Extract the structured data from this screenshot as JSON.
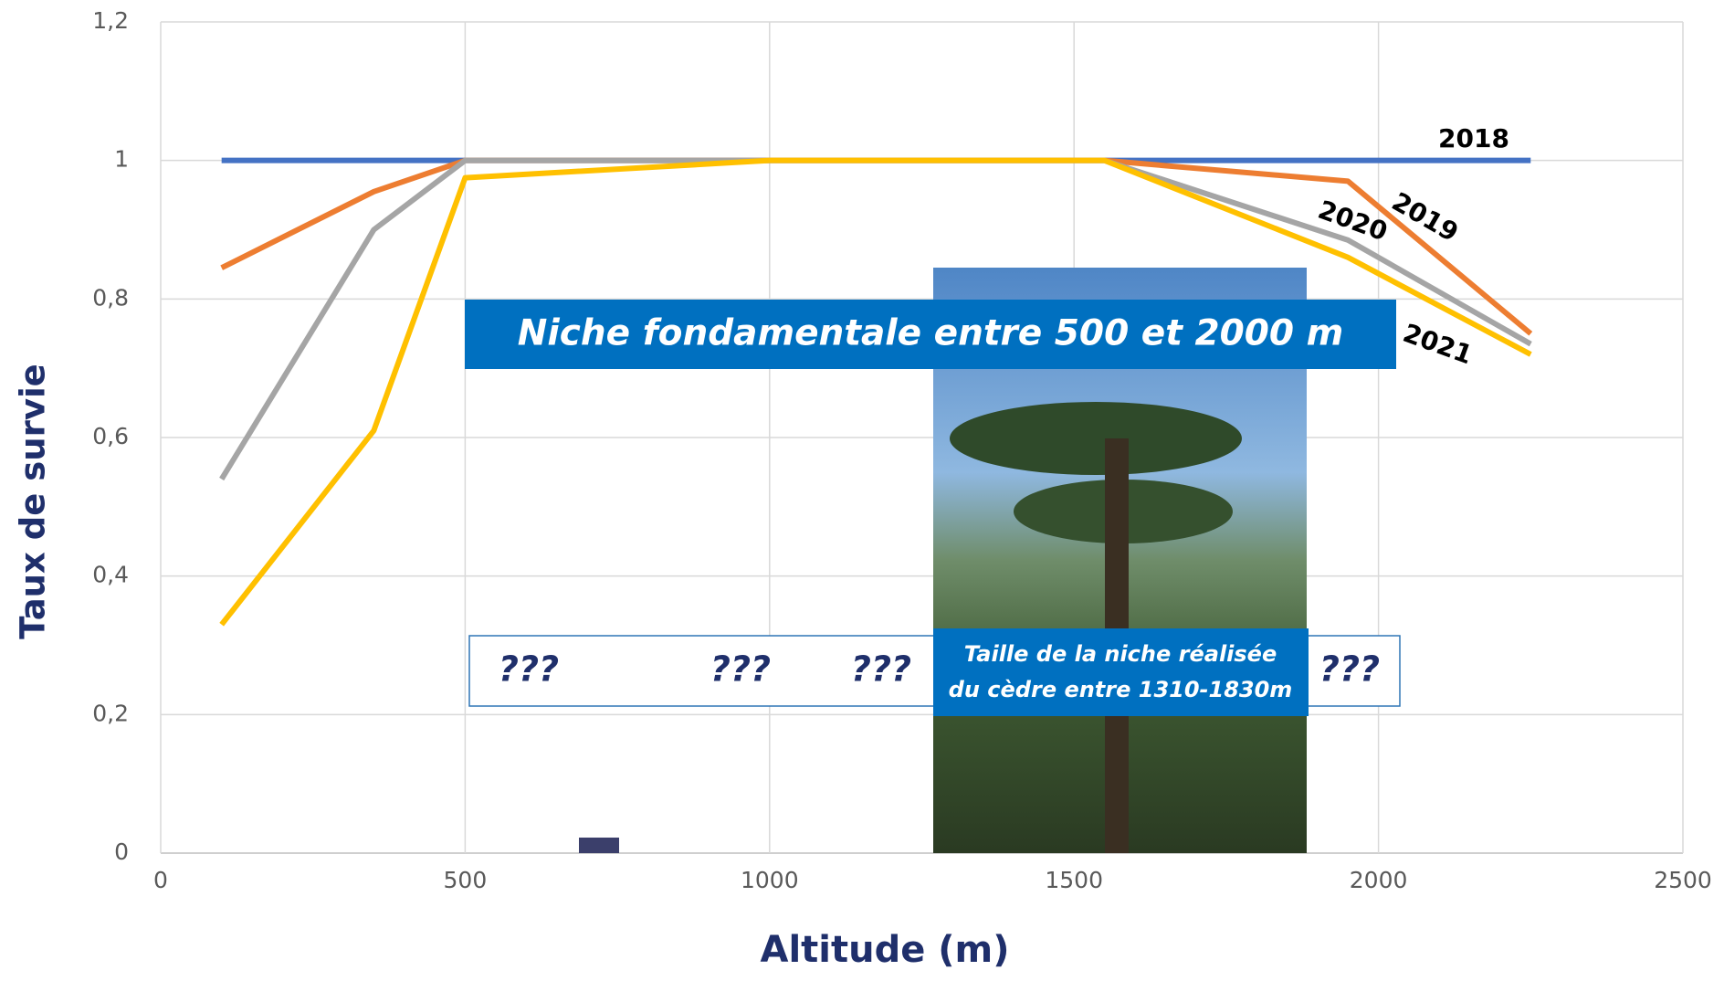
{
  "chart_data": {
    "type": "line",
    "y_label": "Taux de survie",
    "x_label": "Altitude (m)",
    "x": [
      100,
      350,
      500,
      1000,
      1550,
      1950,
      2250
    ],
    "series": [
      {
        "name": "2018",
        "color": "#4472c4",
        "values": [
          1,
          1,
          1,
          1,
          1,
          1,
          1
        ]
      },
      {
        "name": "2019",
        "color": "#ed7d31",
        "values": [
          0.845,
          0.955,
          1,
          1,
          1,
          0.97,
          0.75
        ]
      },
      {
        "name": "2020",
        "color": "#a5a5a5",
        "values": [
          0.54,
          0.9,
          1,
          1,
          1,
          0.885,
          0.735
        ]
      },
      {
        "name": "2021",
        "color": "#ffc000",
        "values": [
          0.33,
          0.61,
          0.975,
          1,
          1,
          0.86,
          0.72
        ]
      }
    ],
    "xlim": [
      0,
      2500
    ],
    "xticks": [
      0,
      500,
      1000,
      1500,
      2000,
      2500
    ],
    "ylim": [
      0,
      1.2
    ],
    "yticks": [
      0,
      {
        "value": 0.2,
        "label": "0,2"
      },
      {
        "value": 0.4,
        "label": "0,4"
      },
      {
        "value": 0.6,
        "label": "0,6"
      },
      {
        "value": 0.8,
        "label": "0,8"
      },
      1,
      {
        "value": 1.2,
        "label": "1,2"
      }
    ],
    "grid": true,
    "annotations": {
      "banner": "Niche fondamentale entre 500 et 2000 m",
      "unknowns": [
        "???",
        "???",
        "???",
        "???"
      ],
      "caption": [
        "Taille de la niche réalisée",
        "du cèdre entre 1310-1830m"
      ]
    }
  }
}
